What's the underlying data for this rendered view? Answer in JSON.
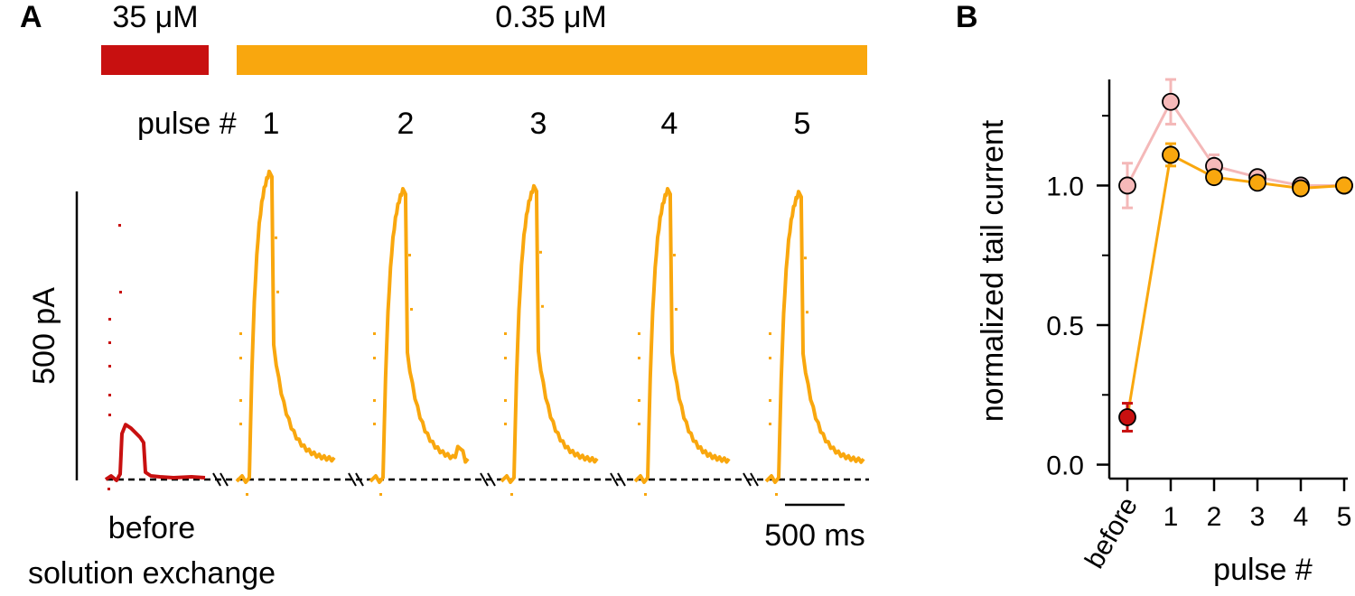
{
  "panel_a": {
    "label": "A",
    "concentration_high": "35 μM",
    "concentration_low": "0.35 μM",
    "pulse_prefix": "pulse #",
    "pulse_numbers": [
      "1",
      "2",
      "3",
      "4",
      "5"
    ],
    "scale_y_label": "500 pA",
    "scale_x_label": "500 ms",
    "before_label_line1": "before",
    "before_label_line2": "solution exchange"
  },
  "panel_b": {
    "label": "B"
  },
  "colors": {
    "high_conc": "#c81010",
    "low_conc": "#f9a70e",
    "pink": "#f6b9b9",
    "pink_line": "#f4b8b8",
    "axis": "#000000"
  },
  "chart_data": [
    {
      "type": "line",
      "title": "",
      "xlabel": "",
      "ylabel": "500 pA",
      "time_scale_label": "500 ms",
      "series": [
        {
          "name": "35 μM",
          "description_values": "before",
          "peak_current_pA": 95,
          "color": "#c81010"
        },
        {
          "name": "0.35 μM",
          "pulses": [
            "1",
            "2",
            "3",
            "4",
            "5"
          ],
          "peak_current_pA": [
            530,
            500,
            505,
            500,
            495
          ],
          "color": "#f9a70e"
        }
      ]
    },
    {
      "type": "scatter",
      "title": "",
      "xlabel": "pulse #",
      "ylabel": "normalized tail current",
      "categories": [
        "before",
        "1",
        "2",
        "3",
        "4",
        "5"
      ],
      "ylim": [
        -0.05,
        1.38
      ],
      "yticks": [
        "0.0",
        "0.5",
        "1.0"
      ],
      "grid": false,
      "series": [
        {
          "values": [
            1.0,
            1.3,
            1.07,
            1.03,
            1.0,
            1.0
          ],
          "errors": [
            0.08,
            0.08,
            0.04,
            0.02,
            0.02,
            0.01
          ],
          "color": "#f6b9b9"
        },
        {
          "values": [
            0.17,
            1.11,
            1.03,
            1.01,
            0.99,
            1.0
          ],
          "errors": [
            0.05,
            0.04,
            0.02,
            0.02,
            0.02,
            0.01
          ],
          "color": "#f9a70e",
          "first_point_color": "#c81010"
        }
      ]
    }
  ]
}
